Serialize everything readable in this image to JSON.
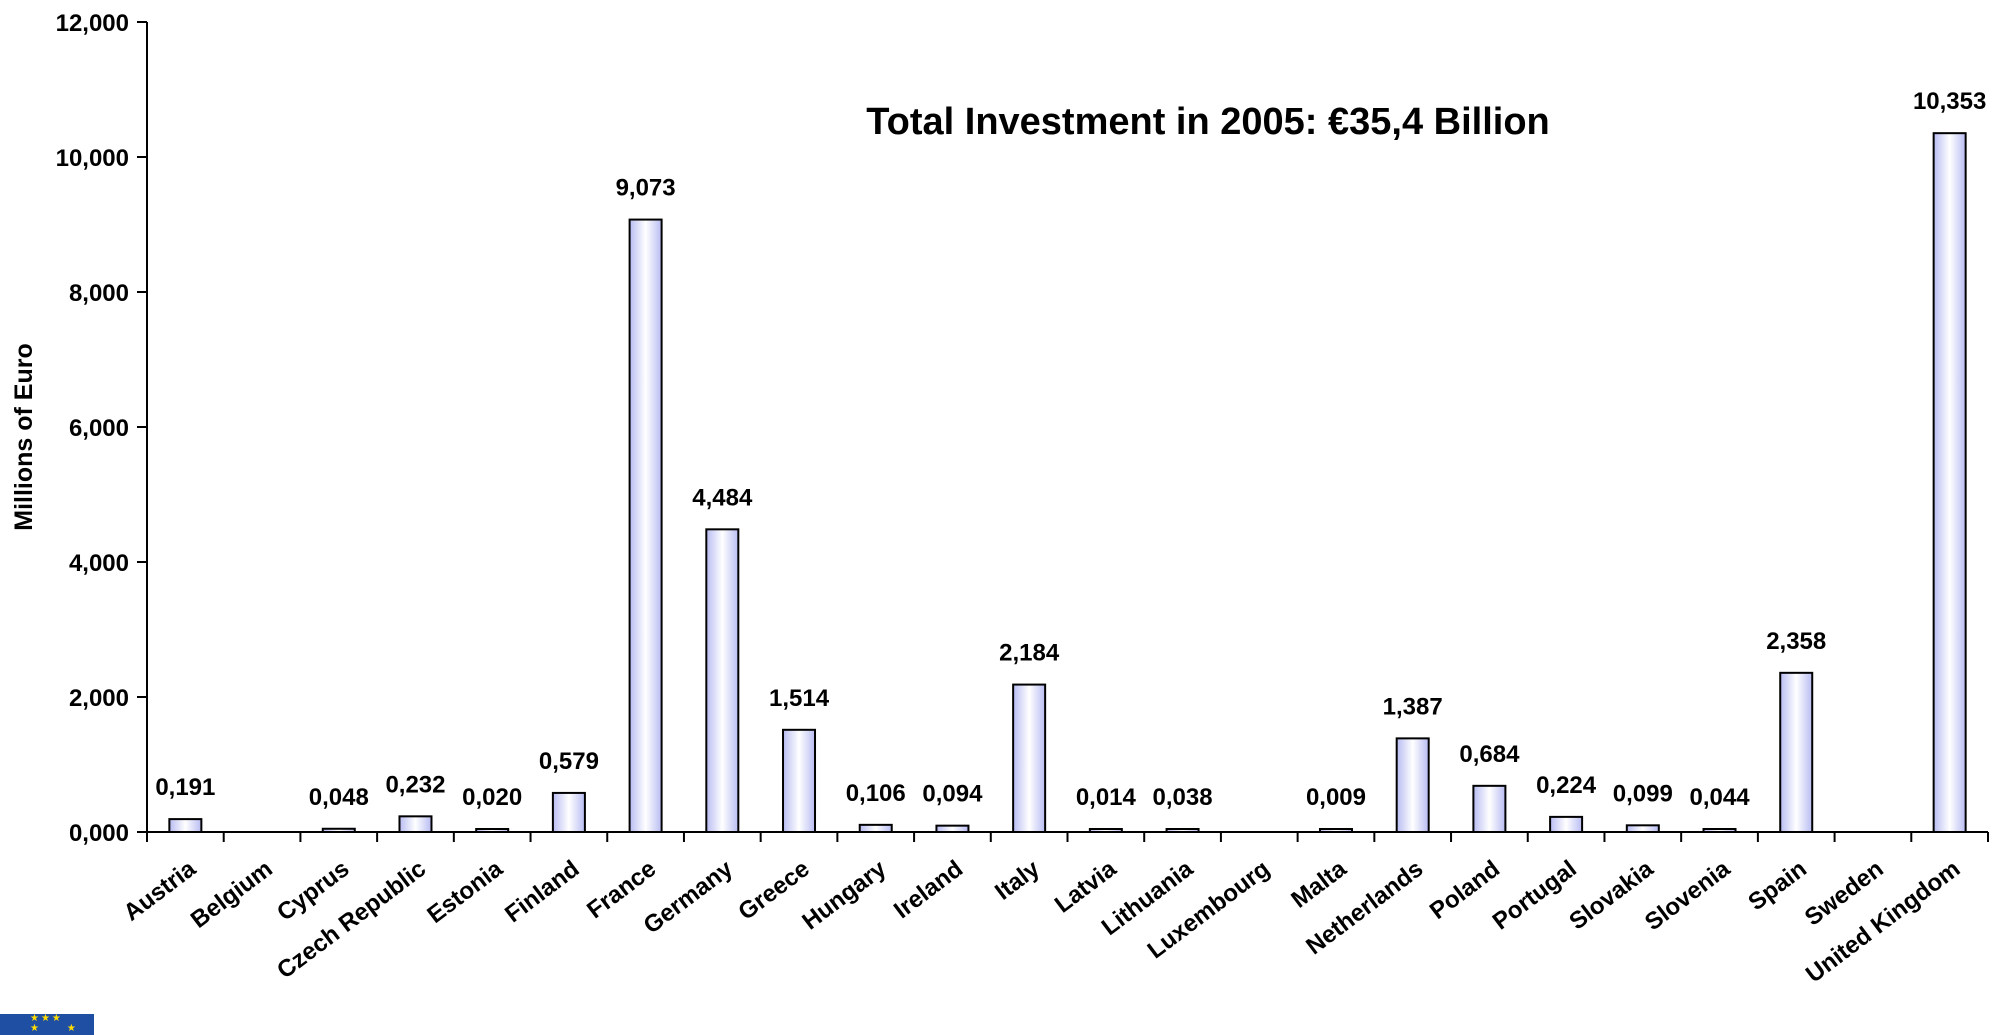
{
  "chart_data": {
    "type": "bar",
    "annotation": "Total Investment in 2005: €35,4 Billion",
    "ylabel": "Millions of Euro",
    "ylim": [
      0,
      12000
    ],
    "yticks": [
      "0,000",
      "2,000",
      "4,000",
      "6,000",
      "8,000",
      "10,000",
      "12,000"
    ],
    "grid": false,
    "categories": [
      "Austria",
      "Belgium",
      "Cyprus",
      "Czech Republic",
      "Estonia",
      "Finland",
      "France",
      "Germany",
      "Greece",
      "Hungary",
      "Ireland",
      "Italy",
      "Latvia",
      "Lithuania",
      "Luxembourg",
      "Malta",
      "Netherlands",
      "Poland",
      "Portugal",
      "Slovakia",
      "Slovenia",
      "Spain",
      "Sweden",
      "United Kingdom"
    ],
    "values": [
      191,
      null,
      48,
      232,
      20,
      579,
      9073,
      4484,
      1514,
      106,
      94,
      2184,
      14,
      38,
      null,
      9,
      1387,
      684,
      224,
      99,
      44,
      2358,
      null,
      10353
    ],
    "data_labels": [
      "0,191",
      "",
      "0,048",
      "0,232",
      "0,020",
      "0,579",
      "9,073",
      "4,484",
      "1,514",
      "0,106",
      "0,094",
      "2,184",
      "0,014",
      "0,038",
      "",
      "0,009",
      "1,387",
      "0,684",
      "0,224",
      "0,099",
      "0,044",
      "2,358",
      "",
      "10,353"
    ],
    "colors": {
      "bar_fill_edge": "#b8bcf2",
      "bar_fill_center": "#ffffff",
      "bar_stroke": "#000000",
      "annotation": "#ff0000"
    }
  },
  "logo": {
    "name": "eu-flag-icon"
  }
}
